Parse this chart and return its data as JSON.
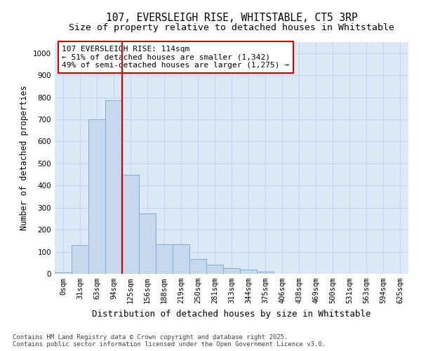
{
  "title_line1": "107, EVERSLEIGH RISE, WHITSTABLE, CT5 3RP",
  "title_line2": "Size of property relative to detached houses in Whitstable",
  "xlabel": "Distribution of detached houses by size in Whitstable",
  "ylabel": "Number of detached properties",
  "categories": [
    "0sqm",
    "31sqm",
    "63sqm",
    "94sqm",
    "125sqm",
    "156sqm",
    "188sqm",
    "219sqm",
    "250sqm",
    "281sqm",
    "313sqm",
    "344sqm",
    "375sqm",
    "406sqm",
    "438sqm",
    "469sqm",
    "500sqm",
    "531sqm",
    "563sqm",
    "594sqm",
    "625sqm"
  ],
  "values": [
    5,
    130,
    700,
    785,
    450,
    275,
    135,
    135,
    68,
    40,
    25,
    20,
    10,
    0,
    0,
    0,
    0,
    0,
    0,
    0,
    0
  ],
  "bar_color": "#c5d8ed",
  "bar_edge_color": "#7dafd4",
  "vline_color": "#cc0000",
  "annotation_text": "107 EVERSLEIGH RISE: 114sqm\n← 51% of detached houses are smaller (1,342)\n49% of semi-detached houses are larger (1,275) →",
  "annotation_box_color": "#ffffff",
  "annotation_box_edge_color": "#cc0000",
  "ylim": [
    0,
    1050
  ],
  "yticks": [
    0,
    100,
    200,
    300,
    400,
    500,
    600,
    700,
    800,
    900,
    1000
  ],
  "grid_color": "#c8d4e8",
  "bg_color": "#dce8f5",
  "footer_text": "Contains HM Land Registry data © Crown copyright and database right 2025.\nContains public sector information licensed under the Open Government Licence v3.0.",
  "title_fontsize": 10.5,
  "subtitle_fontsize": 9.5,
  "ylabel_fontsize": 8.5,
  "xlabel_fontsize": 9,
  "tick_fontsize": 7.5,
  "annot_fontsize": 8,
  "footer_fontsize": 6.5
}
